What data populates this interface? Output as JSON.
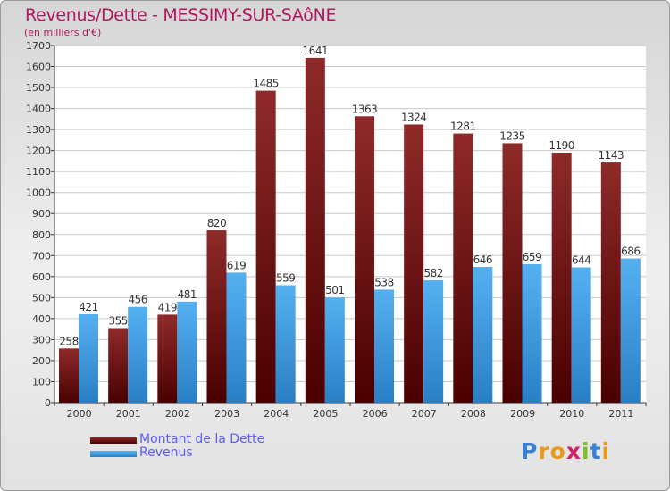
{
  "title": "Revenus/Dette - MESSIMY-SUR-SAôNE",
  "subtitle": "(en milliers d'€)",
  "legend": {
    "debt": "Montant de la Dette",
    "revenue": "Revenus"
  },
  "logo": {
    "text": "Proxiti"
  },
  "colors": {
    "debt": "#7a1010",
    "revenue": "#3c9ee6",
    "title": "#b0195f",
    "legend_text": "#5b5bff"
  },
  "chart_data": {
    "type": "bar",
    "title": "Revenus/Dette - MESSIMY-SUR-SAôNE",
    "ylabel": "(en milliers d'€)",
    "xlabel": "",
    "categories": [
      "2000",
      "2001",
      "2002",
      "2003",
      "2004",
      "2005",
      "2006",
      "2007",
      "2008",
      "2009",
      "2010",
      "2011"
    ],
    "series": [
      {
        "name": "Montant de la Dette",
        "values": [
          258,
          355,
          419,
          820,
          1485,
          1641,
          1363,
          1324,
          1281,
          1235,
          1190,
          1143
        ]
      },
      {
        "name": "Revenus",
        "values": [
          421,
          456,
          481,
          619,
          559,
          501,
          538,
          582,
          646,
          659,
          644,
          686
        ]
      }
    ],
    "ylim": [
      0,
      1700
    ],
    "yticks": [
      0,
      100,
      200,
      300,
      400,
      500,
      600,
      700,
      800,
      900,
      1000,
      1100,
      1200,
      1300,
      1400,
      1500,
      1600,
      1700
    ],
    "grid": true,
    "legend_position": "bottom-left"
  }
}
